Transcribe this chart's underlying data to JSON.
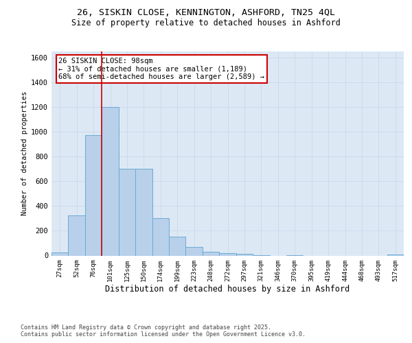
{
  "title": "26, SISKIN CLOSE, KENNINGTON, ASHFORD, TN25 4QL",
  "subtitle": "Size of property relative to detached houses in Ashford",
  "xlabel": "Distribution of detached houses by size in Ashford",
  "ylabel": "Number of detached properties",
  "categories": [
    "27sqm",
    "52sqm",
    "76sqm",
    "101sqm",
    "125sqm",
    "150sqm",
    "174sqm",
    "199sqm",
    "223sqm",
    "248sqm",
    "272sqm",
    "297sqm",
    "321sqm",
    "346sqm",
    "370sqm",
    "395sqm",
    "419sqm",
    "444sqm",
    "468sqm",
    "493sqm",
    "517sqm"
  ],
  "values": [
    25,
    325,
    975,
    1200,
    700,
    700,
    305,
    155,
    70,
    30,
    20,
    15,
    5,
    0,
    5,
    0,
    0,
    0,
    0,
    0,
    10
  ],
  "bar_color": "#b8d0ea",
  "bar_edge_color": "#6aaad4",
  "grid_color": "#c8d4e8",
  "background_color": "#dde8f5",
  "vline_color": "#cc0000",
  "annotation_text": "26 SISKIN CLOSE: 98sqm\n← 31% of detached houses are smaller (1,189)\n68% of semi-detached houses are larger (2,589) →",
  "annotation_box_color": "#cc0000",
  "footer_text": "Contains HM Land Registry data © Crown copyright and database right 2025.\nContains public sector information licensed under the Open Government Licence v3.0.",
  "ylim": [
    0,
    1650
  ],
  "yticks": [
    0,
    200,
    400,
    600,
    800,
    1000,
    1200,
    1400,
    1600
  ]
}
